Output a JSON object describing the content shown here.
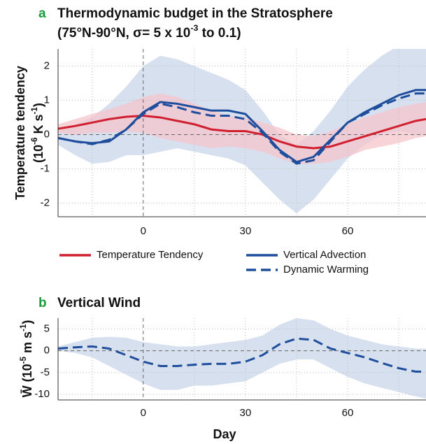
{
  "chart_data": [
    {
      "type": "line",
      "panel_label": "a",
      "title": "Thermodynamic budget in the Stratosphere",
      "subtitle": [
        "(75°N-90°N, σ= 5 x 10",
        "-3",
        " to 0.1)"
      ],
      "ylabel": [
        [
          "Temperature tendency"
        ],
        [
          "(10",
          "-6",
          " K s",
          "-1",
          ")"
        ]
      ],
      "x": [
        -25,
        -20,
        -15,
        -10,
        -5,
        0,
        5,
        10,
        15,
        20,
        25,
        30,
        35,
        40,
        45,
        50,
        55,
        60,
        65,
        70,
        75,
        80,
        83
      ],
      "xlim": [
        -25,
        83
      ],
      "xticks": [
        0,
        30,
        60
      ],
      "xminor": [
        -15,
        15,
        45,
        75
      ],
      "ylim": [
        -2.4,
        2.5
      ],
      "yticks": [
        -2,
        -1,
        0,
        1,
        2
      ],
      "grid": true,
      "bands": [
        {
          "color": "#c9d6ea",
          "upper": [
            0.1,
            0.3,
            0.5,
            0.9,
            1.4,
            2.0,
            2.3,
            2.2,
            2.0,
            1.8,
            1.6,
            1.3,
            0.7,
            0.0,
            -0.3,
            0.1,
            0.7,
            1.4,
            1.9,
            2.3,
            2.6,
            2.7,
            2.7
          ],
          "lower": [
            -0.3,
            -0.6,
            -0.85,
            -0.8,
            -0.6,
            -0.6,
            -0.5,
            -0.4,
            -0.5,
            -0.6,
            -0.7,
            -0.9,
            -1.4,
            -1.9,
            -2.3,
            -1.9,
            -1.3,
            -0.7,
            -0.3,
            0.0,
            0.1,
            0.0,
            0.0
          ]
        },
        {
          "color": "#f6c6cc",
          "upper": [
            0.3,
            0.45,
            0.6,
            0.75,
            0.9,
            1.1,
            1.2,
            1.1,
            0.9,
            0.7,
            0.55,
            0.5,
            0.35,
            0.2,
            0.0,
            -0.05,
            0.1,
            0.3,
            0.5,
            0.65,
            0.8,
            0.9,
            0.95
          ],
          "lower": [
            0.05,
            0.0,
            0.05,
            0.05,
            0.1,
            0.05,
            -0.1,
            -0.2,
            -0.3,
            -0.4,
            -0.35,
            -0.4,
            -0.5,
            -0.7,
            -0.85,
            -0.85,
            -0.8,
            -0.65,
            -0.45,
            -0.35,
            -0.25,
            -0.1,
            -0.05
          ]
        }
      ],
      "series": [
        {
          "name": "Temperature Tendency",
          "color": "#d0202f",
          "dashed": false,
          "values": [
            0.17,
            0.25,
            0.35,
            0.45,
            0.52,
            0.55,
            0.5,
            0.4,
            0.3,
            0.15,
            0.1,
            0.1,
            0.0,
            -0.2,
            -0.35,
            -0.4,
            -0.35,
            -0.2,
            -0.05,
            0.1,
            0.25,
            0.4,
            0.45
          ]
        },
        {
          "name": "Vertical Advection",
          "color": "#1f4e9c",
          "dashed": false,
          "values": [
            -0.1,
            -0.2,
            -0.25,
            -0.2,
            0.15,
            0.65,
            0.95,
            0.9,
            0.8,
            0.7,
            0.7,
            0.6,
            0.1,
            -0.45,
            -0.8,
            -0.65,
            -0.15,
            0.35,
            0.65,
            0.9,
            1.15,
            1.3,
            1.3
          ]
        },
        {
          "name": "Dynamic Warming",
          "color": "#1f4e9c",
          "dashed": true,
          "values": [
            -0.1,
            -0.2,
            -0.28,
            -0.15,
            0.15,
            0.6,
            0.9,
            0.8,
            0.65,
            0.55,
            0.55,
            0.45,
            0.05,
            -0.5,
            -0.85,
            -0.75,
            -0.2,
            0.35,
            0.6,
            0.85,
            1.05,
            1.2,
            1.2
          ]
        }
      ]
    },
    {
      "type": "line",
      "panel_label": "b",
      "title": "Vertical Wind",
      "ylabel": [
        [
          "W̄ (10",
          "-5",
          " m s",
          "-1",
          ")"
        ]
      ],
      "xlabel": "Day",
      "x": [
        -25,
        -20,
        -15,
        -10,
        -5,
        0,
        5,
        10,
        15,
        20,
        25,
        30,
        35,
        40,
        45,
        50,
        55,
        60,
        65,
        70,
        75,
        80,
        83
      ],
      "xlim": [
        -25,
        83
      ],
      "xticks": [
        0,
        30,
        60
      ],
      "xminor": [
        -15,
        15,
        45,
        75
      ],
      "ylim": [
        -11.3,
        7.5
      ],
      "yticks": [
        -10,
        -5,
        0,
        5
      ],
      "grid": true,
      "bands": [
        {
          "color": "#c9d6ea",
          "upper": [
            1.0,
            2.0,
            3.0,
            3.2,
            3.0,
            2.0,
            1.5,
            1.0,
            1.0,
            1.5,
            2.0,
            2.5,
            3.5,
            6.0,
            7.5,
            7.0,
            5.0,
            3.5,
            2.5,
            1.5,
            1.0,
            0.5,
            0.5
          ],
          "lower": [
            0.0,
            -0.5,
            -1.5,
            -3.5,
            -5.5,
            -7.5,
            -9,
            -9,
            -8,
            -8,
            -7.5,
            -7,
            -5,
            -3,
            -2,
            -2,
            -4,
            -6,
            -7.5,
            -8.5,
            -9.5,
            -10.5,
            -11
          ]
        }
      ],
      "series": [
        {
          "color": "#1f4e9c",
          "dashed": true,
          "values": [
            0.5,
            0.8,
            1.0,
            0.5,
            -1.0,
            -2.5,
            -3.5,
            -3.5,
            -3.2,
            -3.0,
            -3.0,
            -2.5,
            -1.0,
            1.5,
            2.8,
            2.5,
            0.5,
            -0.5,
            -1.5,
            -2.8,
            -4.0,
            -4.8,
            -4.8
          ]
        }
      ]
    }
  ]
}
